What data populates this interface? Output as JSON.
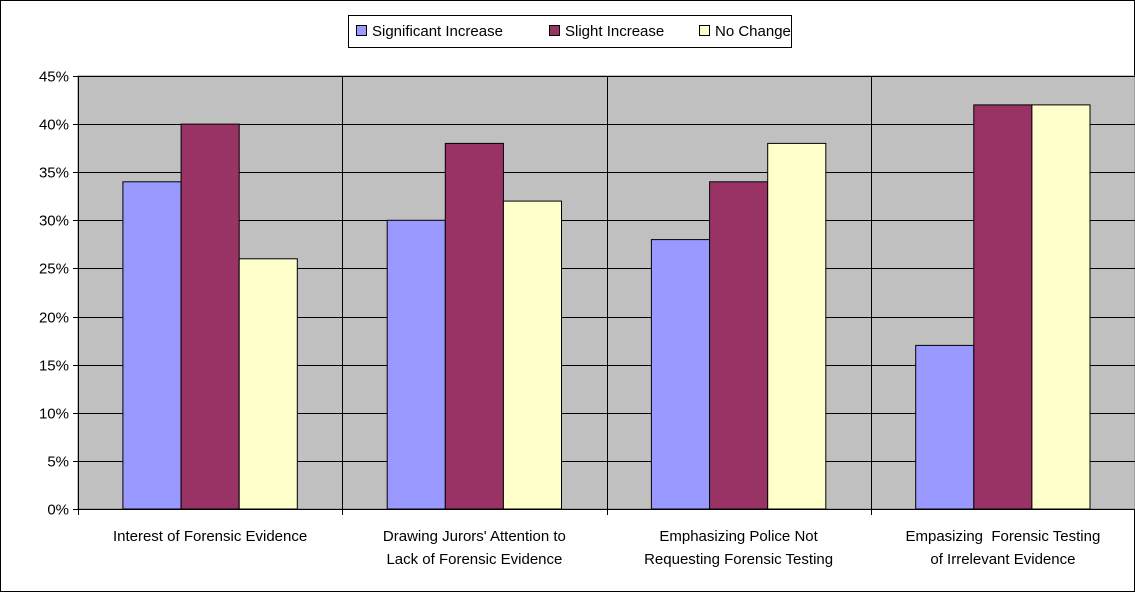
{
  "chart_data": {
    "type": "bar",
    "title": "",
    "xlabel": "",
    "ylabel": "",
    "categories": [
      [
        "Interest of Forensic Evidence"
      ],
      [
        "Drawing Jurors' Attention to",
        "Lack of Forensic Evidence"
      ],
      [
        "Emphasizing Police Not",
        "Requesting Forensic Testing"
      ],
      [
        "Empasizing  Forensic Testing",
        "of Irrelevant Evidence"
      ]
    ],
    "series": [
      {
        "name": "Significant Increase",
        "color": "#9999ff",
        "values": [
          34,
          30,
          28,
          17
        ]
      },
      {
        "name": "Slight Increase",
        "color": "#993366",
        "values": [
          40,
          38,
          34,
          42
        ]
      },
      {
        "name": "No Change",
        "color": "#ffffcc",
        "values": [
          26,
          32,
          38,
          42
        ]
      }
    ],
    "ylim": [
      0,
      45
    ],
    "yticks": [
      0,
      5,
      10,
      15,
      20,
      25,
      30,
      35,
      40,
      45
    ],
    "ytick_labels": [
      "0%",
      "5%",
      "10%",
      "15%",
      "20%",
      "25%",
      "30%",
      "35%",
      "40%",
      "45%"
    ],
    "grid": true,
    "legend_position": "top-center",
    "plot_background": "#c0c0c0"
  }
}
